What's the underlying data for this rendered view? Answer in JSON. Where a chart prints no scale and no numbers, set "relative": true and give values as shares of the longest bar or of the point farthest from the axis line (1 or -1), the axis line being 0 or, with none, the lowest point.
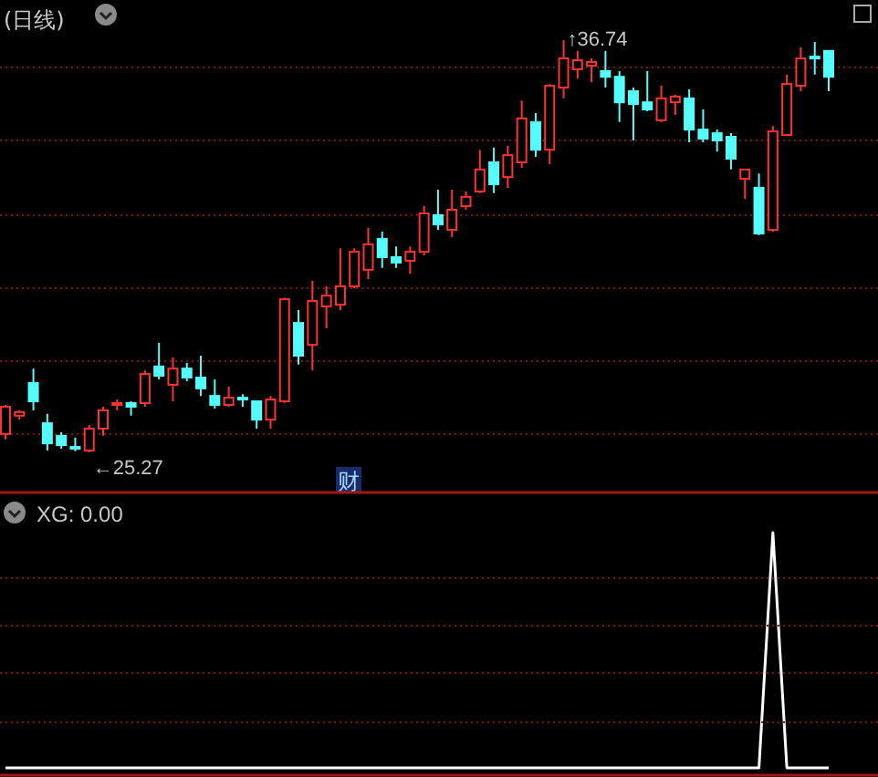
{
  "chart_data": [
    {
      "type": "candlestick",
      "title": "(日线)",
      "categories": [
        null,
        null,
        null,
        null,
        null,
        null,
        null,
        null,
        null,
        null,
        null,
        null,
        null,
        null,
        null,
        null,
        null,
        null,
        null,
        null,
        null,
        null,
        null,
        null,
        null,
        null,
        null,
        null,
        null,
        null,
        null,
        null,
        null,
        null,
        null,
        null,
        null,
        null,
        null,
        null,
        null,
        null,
        null,
        null,
        null,
        null,
        null,
        null,
        null,
        null,
        null,
        null,
        null,
        null,
        null,
        null,
        null,
        null,
        null,
        null
      ],
      "ohlc": [
        [
          25.78,
          26.59,
          25.63,
          26.54
        ],
        [
          26.29,
          26.44,
          26.18,
          26.39
        ],
        [
          27.2,
          27.6,
          26.44,
          26.69
        ],
        [
          26.08,
          26.34,
          25.32,
          25.52
        ],
        [
          25.73,
          25.83,
          25.37,
          25.47
        ],
        [
          25.42,
          25.68,
          25.3,
          25.37
        ],
        [
          25.32,
          26.03,
          25.27,
          25.93
        ],
        [
          25.93,
          26.54,
          25.73,
          26.44
        ],
        [
          26.59,
          26.74,
          26.44,
          26.64
        ],
        [
          26.64,
          26.69,
          26.29,
          26.54
        ],
        [
          26.64,
          27.55,
          26.54,
          27.45
        ],
        [
          27.66,
          28.32,
          27.3,
          27.4
        ],
        [
          27.15,
          27.91,
          26.69,
          27.6
        ],
        [
          27.6,
          27.76,
          27.25,
          27.35
        ],
        [
          27.35,
          27.96,
          26.84,
          27.05
        ],
        [
          26.84,
          27.3,
          26.49,
          26.59
        ],
        [
          26.59,
          27.1,
          26.54,
          26.79
        ],
        [
          26.79,
          26.89,
          26.54,
          26.74
        ],
        [
          26.69,
          26.69,
          25.93,
          26.18
        ],
        [
          26.18,
          26.84,
          25.93,
          26.74
        ],
        [
          26.69,
          29.58,
          26.64,
          29.53
        ],
        [
          28.87,
          29.23,
          27.71,
          27.96
        ],
        [
          28.26,
          30.04,
          27.55,
          29.48
        ],
        [
          29.33,
          29.89,
          28.72,
          29.63
        ],
        [
          29.38,
          30.95,
          29.23,
          29.89
        ],
        [
          29.89,
          30.95,
          29.84,
          30.85
        ],
        [
          30.35,
          31.51,
          30.09,
          31.06
        ],
        [
          31.21,
          31.41,
          30.4,
          30.7
        ],
        [
          30.7,
          31.0,
          30.4,
          30.55
        ],
        [
          30.6,
          31.0,
          30.24,
          30.85
        ],
        [
          30.85,
          32.12,
          30.75,
          31.92
        ],
        [
          31.87,
          32.58,
          31.46,
          31.61
        ],
        [
          31.46,
          32.58,
          31.26,
          32.02
        ],
        [
          32.12,
          32.53,
          32.02,
          32.38
        ],
        [
          32.53,
          33.69,
          32.48,
          33.14
        ],
        [
          33.34,
          33.75,
          32.48,
          32.73
        ],
        [
          32.93,
          33.8,
          32.63,
          33.54
        ],
        [
          33.34,
          35.06,
          33.19,
          34.56
        ],
        [
          34.46,
          34.71,
          33.49,
          33.69
        ],
        [
          33.69,
          35.52,
          33.29,
          35.47
        ],
        [
          35.42,
          36.74,
          35.12,
          36.23
        ],
        [
          35.93,
          36.44,
          35.67,
          36.18
        ],
        [
          36.03,
          36.23,
          35.57,
          36.13
        ],
        [
          35.88,
          36.44,
          35.42,
          35.72
        ],
        [
          35.72,
          35.88,
          34.46,
          35.01
        ],
        [
          35.32,
          35.42,
          33.95,
          34.96
        ],
        [
          35.01,
          35.88,
          34.76,
          34.81
        ],
        [
          34.51,
          35.47,
          34.46,
          35.12
        ],
        [
          35.01,
          35.22,
          34.66,
          35.17
        ],
        [
          35.12,
          35.37,
          33.9,
          34.25
        ],
        [
          34.25,
          34.81,
          33.9,
          34.0
        ],
        [
          34.15,
          34.25,
          33.64,
          33.95
        ],
        [
          34.05,
          34.15,
          33.14,
          33.44
        ],
        [
          32.88,
          33.14,
          32.32,
          33.14
        ],
        [
          32.63,
          33.03,
          31.31,
          31.36
        ],
        [
          31.46,
          34.35,
          31.41,
          34.2
        ],
        [
          34.1,
          35.78,
          34.1,
          35.52
        ],
        [
          35.47,
          36.54,
          35.32,
          36.23
        ],
        [
          36.28,
          36.69,
          35.78,
          36.23
        ],
        [
          36.44,
          36.44,
          35.32,
          35.72
        ]
      ],
      "colors": [
        "#ff3232",
        "#ff3232",
        "#54fcfc",
        "#54fcfc",
        "#54fcfc",
        "#54fcfc",
        "#ff3232",
        "#ff3232",
        "#ff3232",
        "#54fcfc",
        "#ff3232",
        "#54fcfc",
        "#ff3232",
        "#54fcfc",
        "#54fcfc",
        "#54fcfc",
        "#ff3232",
        "#54fcfc",
        "#54fcfc",
        "#ff3232",
        "#ff3232",
        "#54fcfc",
        "#ff3232",
        "#ff3232",
        "#ff3232",
        "#ff3232",
        "#ff3232",
        "#54fcfc",
        "#54fcfc",
        "#ff3232",
        "#ff3232",
        "#54fcfc",
        "#ff3232",
        "#ff3232",
        "#ff3232",
        "#54fcfc",
        "#ff3232",
        "#ff3232",
        "#54fcfc",
        "#ff3232",
        "#ff3232",
        "#ff3232",
        "#ff3232",
        "#54fcfc",
        "#54fcfc",
        "#54fcfc",
        "#54fcfc",
        "#ff3232",
        "#ff3232",
        "#54fcfc",
        "#54fcfc",
        "#54fcfc",
        "#54fcfc",
        "#ff3232",
        "#54fcfc",
        "#ff3232",
        "#ff3232",
        "#ff3232",
        "#54fcfc",
        "#54fcfc"
      ],
      "annotations": [
        "←25.27",
        "↑36.74",
        "财"
      ],
      "yticks": [
        {
          "value": 25.78,
          "label": null
        },
        {
          "value": 27.81,
          "label": null
        },
        {
          "value": 29.84,
          "label": null
        },
        {
          "value": 31.87,
          "label": null
        },
        {
          "value": 33.95,
          "label": null
        },
        {
          "value": 35.98,
          "label": null
        }
      ],
      "grid": "y"
    },
    {
      "type": "line",
      "title": "XG: 0.00",
      "relative": true,
      "categories": [
        null,
        null,
        null,
        null,
        null,
        null,
        null,
        null,
        null,
        null,
        null,
        null,
        null,
        null,
        null,
        null,
        null,
        null,
        null,
        null,
        null,
        null,
        null,
        null,
        null,
        null,
        null,
        null,
        null,
        null,
        null,
        null,
        null,
        null,
        null,
        null,
        null,
        null,
        null,
        null,
        null,
        null,
        null,
        null,
        null,
        null,
        null,
        null,
        null,
        null,
        null,
        null,
        null,
        null,
        null,
        null,
        null,
        null,
        null,
        null
      ],
      "series": [
        {
          "color": "#ffffff",
          "values": [
            0,
            0,
            0,
            0,
            0,
            0,
            0,
            0,
            0,
            0,
            0,
            0,
            0,
            0,
            0,
            0,
            0,
            0,
            0,
            0,
            0,
            0,
            0,
            0,
            0,
            0,
            0,
            0,
            0,
            0,
            0,
            0,
            0,
            0,
            0,
            0,
            0,
            0,
            0,
            0,
            0,
            0,
            0,
            0,
            0,
            0,
            0,
            0,
            0,
            0,
            0,
            0,
            0,
            0,
            0,
            1,
            0,
            0,
            0,
            0
          ]
        }
      ],
      "ref_lines": [
        {
          "axis": "y",
          "value": 0.806,
          "color": "#7a1414",
          "line_style": "dotted"
        },
        {
          "axis": "y",
          "value": 0.605,
          "color": "#7a1414",
          "line_style": "dotted"
        },
        {
          "axis": "y",
          "value": 0.403,
          "color": "#7a1414",
          "line_style": "dotted"
        },
        {
          "axis": "y",
          "value": 0.194,
          "color": "#7a1414",
          "line_style": "dotted"
        }
      ]
    }
  ]
}
